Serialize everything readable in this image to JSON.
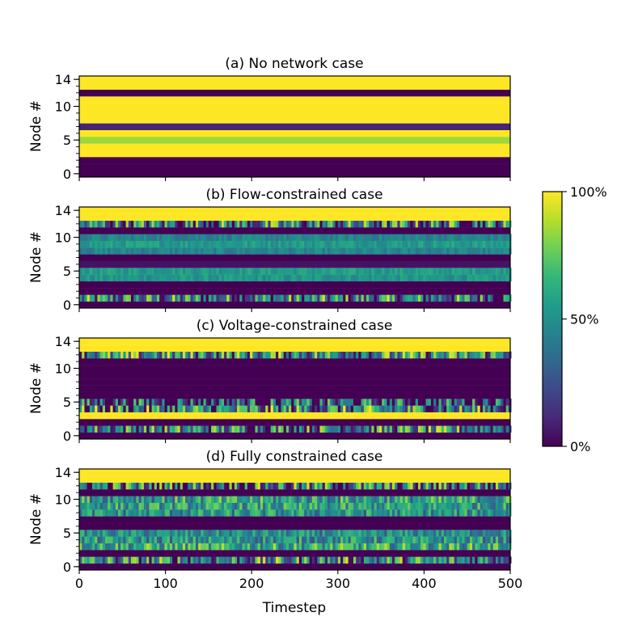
{
  "chart_data": {
    "type": "heatmap",
    "xlabel": "Timestep",
    "ylabel": "Node #",
    "xlim": [
      0,
      500
    ],
    "ylim": [
      0,
      14
    ],
    "x_ticks": [
      "0",
      "100",
      "200",
      "300",
      "400",
      "500"
    ],
    "x_tick_values": [
      0,
      100,
      200,
      300,
      400,
      500
    ],
    "y_ticks": [
      "0",
      "5",
      "10",
      "14"
    ],
    "y_tick_values": [
      0,
      5,
      10,
      14
    ],
    "colorbar": {
      "ticks": [
        "0%",
        "50%",
        "100%"
      ],
      "tick_values": [
        0,
        50,
        100
      ],
      "colormap": [
        "#440154",
        "#482878",
        "#3e4989",
        "#31688e",
        "#26828e",
        "#1f9e89",
        "#35b779",
        "#6ece58",
        "#b5de2b",
        "#fde725"
      ]
    },
    "panels": [
      {
        "title": "(a) No network case",
        "node_levels_pct": [
          0,
          0,
          0,
          100,
          100,
          85,
          100,
          10,
          100,
          100,
          100,
          100,
          0,
          100,
          100
        ],
        "node_variability_pct": [
          0,
          0,
          0,
          0,
          0,
          0,
          0,
          0,
          0,
          0,
          0,
          0,
          0,
          0,
          0
        ]
      },
      {
        "title": "(b) Flow-constrained case",
        "node_levels_pct": [
          0,
          40,
          0,
          0,
          52,
          55,
          5,
          0,
          45,
          55,
          45,
          0,
          40,
          100,
          100
        ],
        "node_variability_pct": [
          0,
          55,
          0,
          0,
          8,
          8,
          0,
          0,
          8,
          8,
          8,
          0,
          55,
          0,
          0
        ]
      },
      {
        "title": "(c) Voltage-constrained case",
        "node_levels_pct": [
          0,
          45,
          0,
          100,
          40,
          25,
          0,
          0,
          0,
          0,
          0,
          0,
          50,
          100,
          100
        ],
        "node_variability_pct": [
          0,
          50,
          0,
          0,
          60,
          55,
          0,
          0,
          0,
          0,
          0,
          0,
          50,
          0,
          0
        ]
      },
      {
        "title": "(d) Fully constrained case",
        "node_levels_pct": [
          0,
          45,
          0,
          60,
          50,
          48,
          0,
          0,
          50,
          55,
          55,
          0,
          40,
          100,
          100
        ],
        "node_variability_pct": [
          0,
          50,
          0,
          30,
          25,
          20,
          0,
          0,
          25,
          25,
          30,
          0,
          55,
          0,
          0
        ]
      }
    ]
  }
}
